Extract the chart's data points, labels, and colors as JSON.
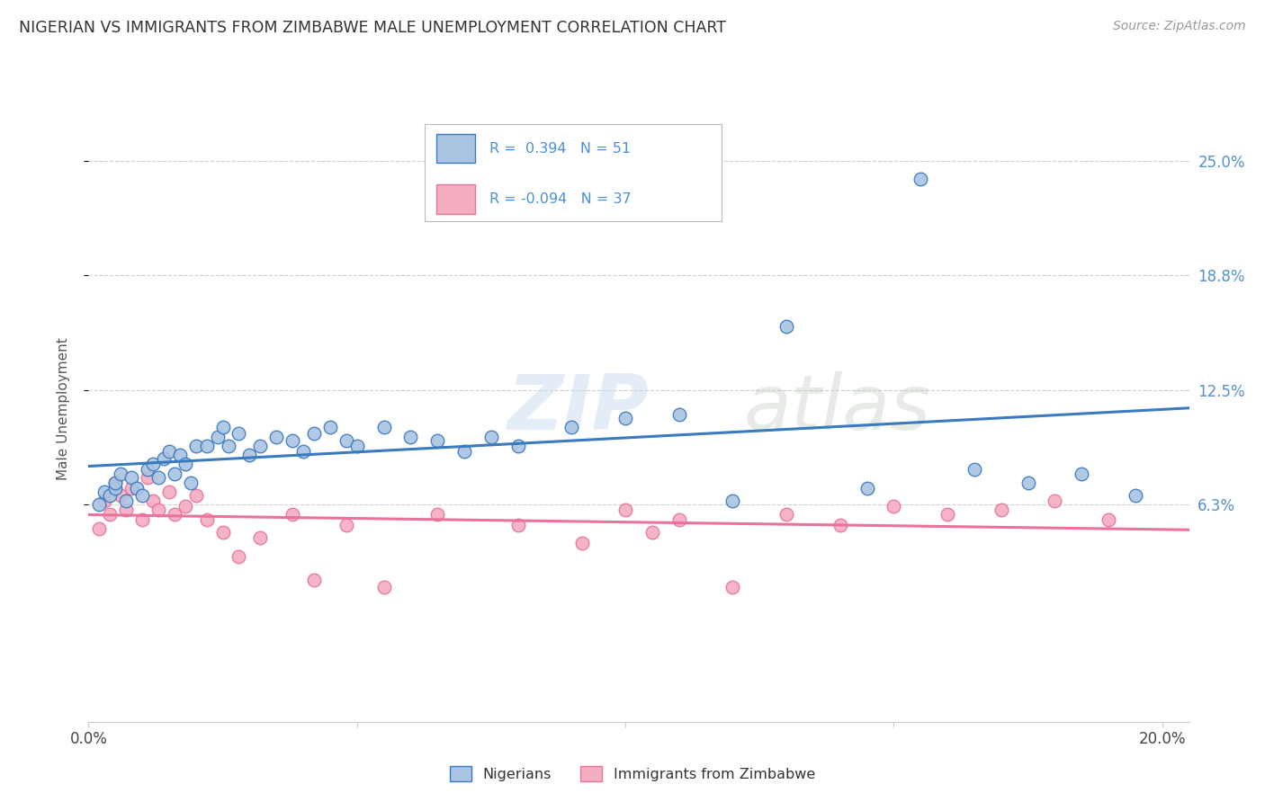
{
  "title": "NIGERIAN VS IMMIGRANTS FROM ZIMBABWE MALE UNEMPLOYMENT CORRELATION CHART",
  "source": "Source: ZipAtlas.com",
  "ylabel": "Male Unemployment",
  "ytick_labels": [
    "6.3%",
    "12.5%",
    "18.8%",
    "25.0%"
  ],
  "ytick_values": [
    0.063,
    0.125,
    0.188,
    0.25
  ],
  "xlim": [
    0.0,
    0.205
  ],
  "ylim": [
    -0.055,
    0.285
  ],
  "legend_r_nigerian": "0.394",
  "legend_n_nigerian": "51",
  "legend_r_zimbabwe": "-0.094",
  "legend_n_zimbabwe": "37",
  "nigerian_color": "#aac4e2",
  "zimbabwe_color": "#f5adc0",
  "nigerian_line_color": "#3a7abf",
  "zimbabwe_line_color": "#e8729a",
  "watermark_zip": "ZIP",
  "watermark_atlas": "atlas",
  "nigerian_x": [
    0.002,
    0.003,
    0.004,
    0.005,
    0.005,
    0.006,
    0.007,
    0.008,
    0.009,
    0.01,
    0.011,
    0.012,
    0.013,
    0.014,
    0.015,
    0.016,
    0.017,
    0.018,
    0.019,
    0.02,
    0.022,
    0.024,
    0.025,
    0.026,
    0.028,
    0.03,
    0.032,
    0.035,
    0.038,
    0.04,
    0.042,
    0.045,
    0.048,
    0.05,
    0.055,
    0.06,
    0.065,
    0.07,
    0.075,
    0.08,
    0.09,
    0.1,
    0.11,
    0.12,
    0.13,
    0.145,
    0.155,
    0.165,
    0.175,
    0.185,
    0.195
  ],
  "nigerian_y": [
    0.063,
    0.07,
    0.068,
    0.072,
    0.075,
    0.08,
    0.065,
    0.078,
    0.072,
    0.068,
    0.082,
    0.085,
    0.078,
    0.088,
    0.092,
    0.08,
    0.09,
    0.085,
    0.075,
    0.095,
    0.095,
    0.1,
    0.105,
    0.095,
    0.102,
    0.09,
    0.095,
    0.1,
    0.098,
    0.092,
    0.102,
    0.105,
    0.098,
    0.095,
    0.105,
    0.1,
    0.098,
    0.092,
    0.1,
    0.095,
    0.105,
    0.11,
    0.112,
    0.065,
    0.16,
    0.072,
    0.24,
    0.082,
    0.075,
    0.08,
    0.068
  ],
  "zimbabwe_x": [
    0.002,
    0.003,
    0.004,
    0.005,
    0.006,
    0.007,
    0.008,
    0.01,
    0.011,
    0.012,
    0.013,
    0.015,
    0.016,
    0.018,
    0.02,
    0.022,
    0.025,
    0.028,
    0.032,
    0.038,
    0.042,
    0.048,
    0.055,
    0.065,
    0.08,
    0.092,
    0.1,
    0.105,
    0.11,
    0.12,
    0.13,
    0.14,
    0.15,
    0.16,
    0.17,
    0.18,
    0.19
  ],
  "zimbabwe_y": [
    0.05,
    0.065,
    0.058,
    0.075,
    0.068,
    0.06,
    0.072,
    0.055,
    0.078,
    0.065,
    0.06,
    0.07,
    0.058,
    0.062,
    0.068,
    0.055,
    0.048,
    0.035,
    0.045,
    0.058,
    0.022,
    0.052,
    0.018,
    0.058,
    0.052,
    0.042,
    0.06,
    0.048,
    0.055,
    0.018,
    0.058,
    0.052,
    0.062,
    0.058,
    0.06,
    0.065,
    0.055
  ],
  "background_color": "#ffffff",
  "grid_color": "#d0d0d0"
}
